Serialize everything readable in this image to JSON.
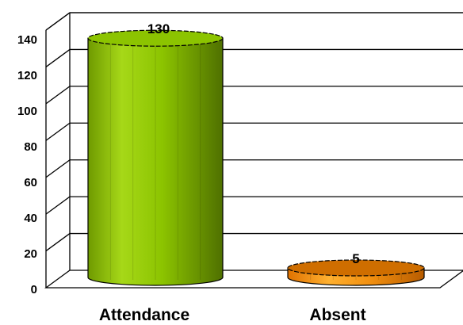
{
  "chart_data": {
    "type": "bar",
    "style": "3d-cylinder",
    "categories": [
      "Attendance",
      "Absent"
    ],
    "values": [
      130,
      5
    ],
    "data_labels": [
      "130",
      "5"
    ],
    "colors": [
      "#8cc400",
      "#e8820e"
    ],
    "ylim": [
      0,
      140
    ],
    "yticks": [
      "0",
      "20",
      "40",
      "60",
      "80",
      "100",
      "120",
      "140"
    ],
    "grid": true,
    "legend": "none",
    "title": "",
    "xlabel": "",
    "ylabel": ""
  }
}
